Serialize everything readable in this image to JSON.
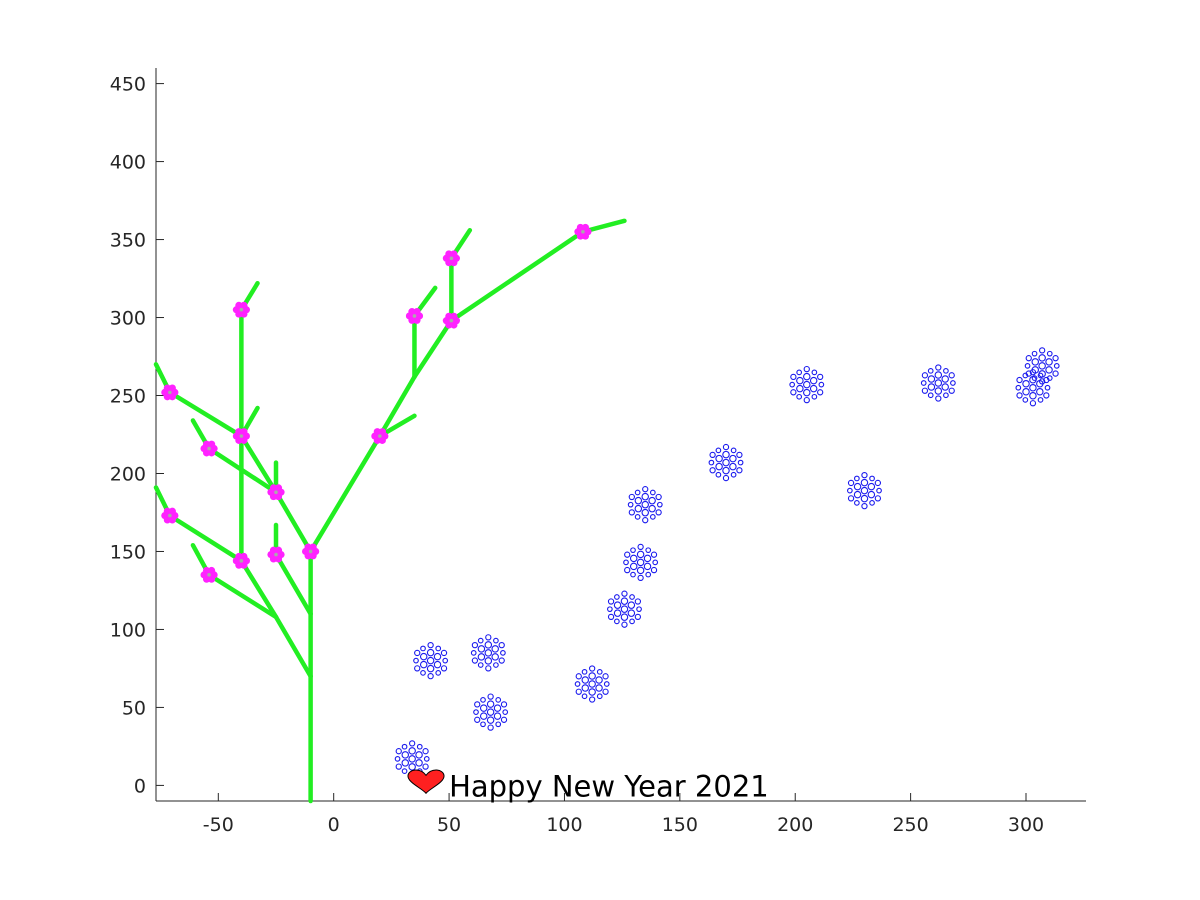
{
  "chart_data": {
    "type": "scatter",
    "title": "",
    "xlabel": "",
    "ylabel": "",
    "xlim": [
      -77,
      326
    ],
    "ylim": [
      -10,
      460
    ],
    "xticks": [
      -50,
      0,
      50,
      100,
      150,
      200,
      250,
      300
    ],
    "yticks": [
      0,
      50,
      100,
      150,
      200,
      250,
      300,
      350,
      400,
      450
    ],
    "grid": false,
    "legend": "none",
    "colors": {
      "branch": "#22ee22",
      "blossom": "#ff22ff",
      "blossom_center": "#aaaaaa",
      "snowflake": "#1a1aee",
      "heart": "#ff2020",
      "axis": "#262626"
    },
    "tree_segments": [
      {
        "from": [
          -10,
          -10
        ],
        "to": [
          -10,
          70
        ]
      },
      {
        "from": [
          -10,
          70
        ],
        "to": [
          -10,
          110
        ]
      },
      {
        "from": [
          -10,
          110
        ],
        "to": [
          -10,
          150
        ]
      },
      {
        "from": [
          -10,
          150
        ],
        "to": [
          20,
          224
        ]
      },
      {
        "from": [
          20,
          224
        ],
        "to": [
          35,
          237
        ]
      },
      {
        "from": [
          20,
          224
        ],
        "to": [
          35,
          262
        ]
      },
      {
        "from": [
          35,
          262
        ],
        "to": [
          35,
          301
        ]
      },
      {
        "from": [
          35,
          301
        ],
        "to": [
          44,
          319
        ]
      },
      {
        "from": [
          35,
          262
        ],
        "to": [
          51,
          298
        ]
      },
      {
        "from": [
          51,
          298
        ],
        "to": [
          51,
          338
        ]
      },
      {
        "from": [
          51,
          338
        ],
        "to": [
          59,
          356
        ]
      },
      {
        "from": [
          51,
          298
        ],
        "to": [
          108,
          355
        ]
      },
      {
        "from": [
          108,
          355
        ],
        "to": [
          126,
          362
        ]
      },
      {
        "from": [
          -10,
          150
        ],
        "to": [
          -25,
          188
        ]
      },
      {
        "from": [
          -25,
          188
        ],
        "to": [
          -25,
          207
        ]
      },
      {
        "from": [
          -25,
          188
        ],
        "to": [
          -40,
          224
        ]
      },
      {
        "from": [
          -40,
          224
        ],
        "to": [
          -33,
          242
        ]
      },
      {
        "from": [
          -40,
          224
        ],
        "to": [
          -40,
          305
        ]
      },
      {
        "from": [
          -40,
          305
        ],
        "to": [
          -33,
          322
        ]
      },
      {
        "from": [
          -25,
          188
        ],
        "to": [
          -54,
          216
        ]
      },
      {
        "from": [
          -54,
          216
        ],
        "to": [
          -61,
          234
        ]
      },
      {
        "from": [
          -40,
          224
        ],
        "to": [
          -71,
          252
        ]
      },
      {
        "from": [
          -71,
          252
        ],
        "to": [
          -77,
          270
        ]
      },
      {
        "from": [
          -10,
          110
        ],
        "to": [
          -25,
          148
        ]
      },
      {
        "from": [
          -25,
          148
        ],
        "to": [
          -25,
          167
        ]
      },
      {
        "from": [
          -10,
          70
        ],
        "to": [
          -25,
          108
        ]
      },
      {
        "from": [
          -25,
          108
        ],
        "to": [
          -40,
          144
        ]
      },
      {
        "from": [
          -40,
          144
        ],
        "to": [
          -40,
          224
        ]
      },
      {
        "from": [
          -25,
          108
        ],
        "to": [
          -54,
          135
        ]
      },
      {
        "from": [
          -54,
          135
        ],
        "to": [
          -61,
          154
        ]
      },
      {
        "from": [
          -40,
          144
        ],
        "to": [
          -71,
          173
        ]
      },
      {
        "from": [
          -71,
          173
        ],
        "to": [
          -77,
          191
        ]
      }
    ],
    "blossoms": [
      {
        "x": -10,
        "y": 150
      },
      {
        "x": -25,
        "y": 188
      },
      {
        "x": -25,
        "y": 148
      },
      {
        "x": -40,
        "y": 224
      },
      {
        "x": -40,
        "y": 144
      },
      {
        "x": -40,
        "y": 305
      },
      {
        "x": -54,
        "y": 216
      },
      {
        "x": -54,
        "y": 135
      },
      {
        "x": -71,
        "y": 252
      },
      {
        "x": -71,
        "y": 173
      },
      {
        "x": 20,
        "y": 224
      },
      {
        "x": 35,
        "y": 301
      },
      {
        "x": 51,
        "y": 298
      },
      {
        "x": 51,
        "y": 338
      },
      {
        "x": 108,
        "y": 355
      }
    ],
    "snowflakes": [
      {
        "x": 34,
        "y": 17
      },
      {
        "x": 42,
        "y": 80
      },
      {
        "x": 67,
        "y": 85
      },
      {
        "x": 68,
        "y": 47
      },
      {
        "x": 112,
        "y": 65
      },
      {
        "x": 126,
        "y": 113
      },
      {
        "x": 133,
        "y": 143
      },
      {
        "x": 135,
        "y": 180
      },
      {
        "x": 170,
        "y": 207
      },
      {
        "x": 205,
        "y": 257
      },
      {
        "x": 230,
        "y": 189
      },
      {
        "x": 262,
        "y": 258
      },
      {
        "x": 303,
        "y": 255
      },
      {
        "x": 307,
        "y": 269
      }
    ],
    "heart": {
      "x": 40,
      "y": 2
    },
    "annotation": {
      "text": "Happy New Year 2021",
      "x": 50,
      "y": 0
    }
  }
}
